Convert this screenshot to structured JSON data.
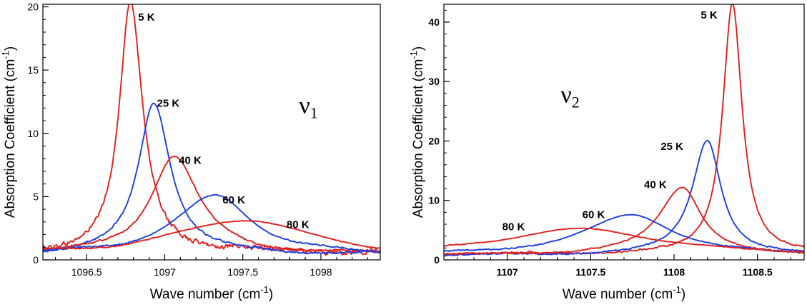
{
  "chart_data": [
    {
      "type": "line",
      "xlabel": "Wave number (cm",
      "xlabel_sup": "-1",
      "xlabel_end": ")",
      "ylabel": "Absorption Coefficient (cm",
      "ylabel_sup": "-1",
      "ylabel_end": ")",
      "xlim": [
        1096.22,
        1098.38
      ],
      "ylim": [
        0,
        20.2
      ],
      "x_ticks": [
        1096.5,
        1097,
        1097.5,
        1098
      ],
      "x_tick_labels": [
        "1096.5",
        "1097",
        "1097.5",
        "1098"
      ],
      "y_ticks": [
        0,
        5,
        10,
        15,
        20
      ],
      "y_tick_labels": [
        "0",
        "5",
        "10",
        "15",
        "20"
      ],
      "tick_bold": false,
      "mode_label": "ν",
      "mode_sub": "1",
      "mode_pos": [
        1097.86,
        11.6
      ],
      "series": [
        {
          "name": "5 K",
          "color": "#e0201c",
          "center": 1096.78,
          "peak": 19.7,
          "hwl": 0.085,
          "hwr": 0.095,
          "base": 0.6,
          "noise": 0.35,
          "label_pos": [
            1096.83,
            18.9
          ]
        },
        {
          "name": "25 K",
          "color": "#1c3fe0",
          "center": 1096.93,
          "peak": 12.0,
          "hwl": 0.12,
          "hwr": 0.13,
          "base": 0.45,
          "noise": 0.15,
          "label_pos": [
            1096.95,
            12.1
          ]
        },
        {
          "name": "40 K",
          "color": "#e0201c",
          "center": 1097.06,
          "peak": 7.8,
          "hwl": 0.18,
          "hwr": 0.19,
          "base": 0.45,
          "noise": 0.15,
          "label_pos": [
            1097.09,
            7.6
          ]
        },
        {
          "name": "60 K",
          "color": "#1c3fe0",
          "center": 1097.33,
          "peak": 4.7,
          "hwl": 0.32,
          "hwr": 0.28,
          "base": 0.35,
          "noise": 0.12,
          "label_pos": [
            1097.37,
            4.45
          ]
        },
        {
          "name": "80 K",
          "color": "#e0201c",
          "center": 1097.52,
          "peak": 2.85,
          "hwl": 0.55,
          "hwr": 0.48,
          "base": 0.35,
          "noise": 0.12,
          "label_pos": [
            1097.78,
            2.5
          ]
        }
      ]
    },
    {
      "type": "line",
      "xlabel": "Wave number (cm",
      "xlabel_sup": "-1",
      "xlabel_end": ")",
      "ylabel": "Absorption Coefficient (cm",
      "ylabel_sup": "-1",
      "ylabel_end": ")",
      "xlim": [
        1106.62,
        1108.78
      ],
      "ylim": [
        0,
        43
      ],
      "x_ticks": [
        1107,
        1107.5,
        1108,
        1108.5
      ],
      "x_tick_labels": [
        "1107",
        "1107.5",
        "1108",
        "1108.5"
      ],
      "y_ticks": [
        0,
        10,
        20,
        30,
        40
      ],
      "y_tick_labels": [
        "0",
        "10",
        "20",
        "30",
        "40"
      ],
      "tick_bold": true,
      "mode_label": "ν",
      "mode_sub": "2",
      "mode_pos": [
        1107.32,
        26.5
      ],
      "series": [
        {
          "name": "5 K",
          "color": "#e0201c",
          "center": 1108.35,
          "peak": 42.3,
          "hwl": 0.07,
          "hwr": 0.07,
          "base": 1.0,
          "noise": 0.25,
          "label_pos": [
            1108.16,
            40.6
          ]
        },
        {
          "name": "25 K",
          "color": "#1c3fe0",
          "center": 1108.2,
          "peak": 19.4,
          "hwl": 0.11,
          "hwr": 0.1,
          "base": 0.8,
          "noise": 0.2,
          "label_pos": [
            1107.92,
            18.5
          ]
        },
        {
          "name": "40 K",
          "color": "#e0201c",
          "center": 1108.05,
          "peak": 11.5,
          "hwl": 0.17,
          "hwr": 0.14,
          "base": 0.8,
          "noise": 0.2,
          "label_pos": [
            1107.82,
            12.1
          ]
        },
        {
          "name": "60 K",
          "color": "#1c3fe0",
          "center": 1107.75,
          "peak": 6.8,
          "hwl": 0.35,
          "hwr": 0.3,
          "base": 0.8,
          "noise": 0.2,
          "label_pos": [
            1107.45,
            7.0
          ]
        },
        {
          "name": "80 K",
          "color": "#e0201c",
          "center": 1107.45,
          "peak": 4.4,
          "hwl": 0.6,
          "hwr": 0.55,
          "base": 0.8,
          "noise": 0.2,
          "label_pos": [
            1106.97,
            5.0
          ]
        }
      ]
    }
  ]
}
